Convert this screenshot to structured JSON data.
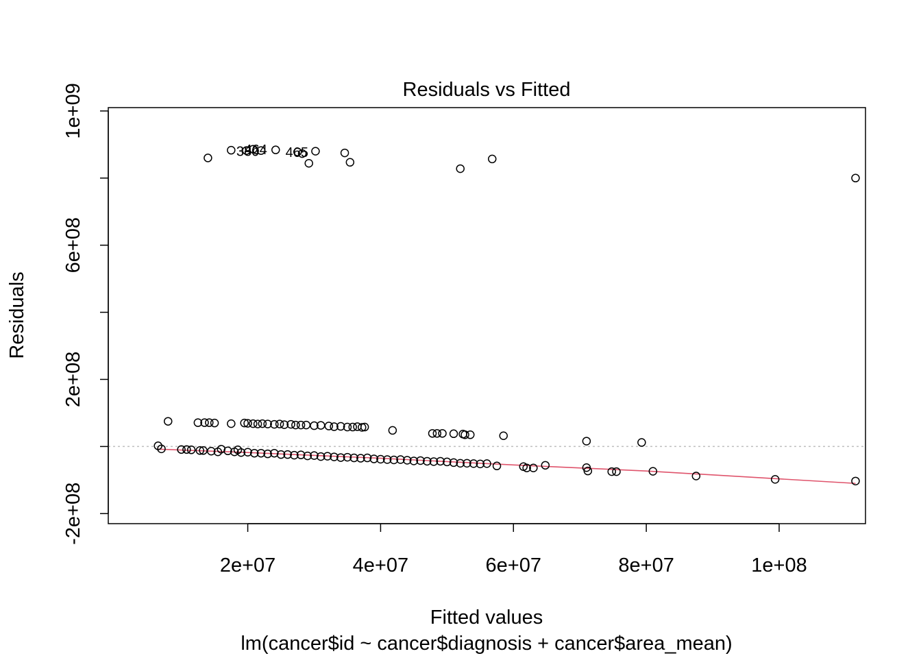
{
  "chart_data": {
    "type": "scatter",
    "title": "Residuals vs Fitted",
    "xlabel": "Fitted values",
    "ylabel": "Residuals",
    "subtitle": "lm(cancer$id ~ cancer$diagnosis + cancer$area_mean)",
    "xlim": [
      -1000000,
      113000000
    ],
    "ylim": [
      -230000000,
      1010000000
    ],
    "x_ticks": [
      {
        "value": 20000000,
        "label": "2e+07"
      },
      {
        "value": 40000000,
        "label": "4e+07"
      },
      {
        "value": 60000000,
        "label": "6e+07"
      },
      {
        "value": 80000000,
        "label": "8e+07"
      },
      {
        "value": 100000000,
        "label": "1e+08"
      }
    ],
    "y_ticks": [
      {
        "value": -200000000,
        "label": "-2e+08",
        "labeled": true
      },
      {
        "value": 0,
        "label": "",
        "labeled": false
      },
      {
        "value": 200000000,
        "label": "2e+08",
        "labeled": true
      },
      {
        "value": 400000000,
        "label": "",
        "labeled": false
      },
      {
        "value": 600000000,
        "label": "6e+08",
        "labeled": true
      },
      {
        "value": 800000000,
        "label": "",
        "labeled": false
      },
      {
        "value": 1000000000,
        "label": "1e+09",
        "labeled": true
      }
    ],
    "zero_line": 0,
    "grid": false,
    "point_labels": [
      {
        "text": "380",
        "x": 20000000,
        "y": 880000000
      },
      {
        "text": "464",
        "x": 21200000,
        "y": 885000000
      },
      {
        "text": "465",
        "x": 27400000,
        "y": 877000000
      }
    ],
    "series": [
      {
        "type": "points",
        "points": [
          [
            14000000,
            860000000
          ],
          [
            17500000,
            883000000
          ],
          [
            19800000,
            882000000
          ],
          [
            20800000,
            886000000
          ],
          [
            22000000,
            882000000
          ],
          [
            24200000,
            884000000
          ],
          [
            27500000,
            878000000
          ],
          [
            28200000,
            873000000
          ],
          [
            29200000,
            844000000
          ],
          [
            30200000,
            880000000
          ],
          [
            34600000,
            875000000
          ],
          [
            35400000,
            847000000
          ],
          [
            52000000,
            828000000
          ],
          [
            56800000,
            857000000
          ],
          [
            111500000,
            800000000
          ],
          [
            8000000,
            75000000
          ],
          [
            12500000,
            71000000
          ],
          [
            13500000,
            71000000
          ],
          [
            14200000,
            71000000
          ],
          [
            15000000,
            70000000
          ],
          [
            17500000,
            68000000
          ],
          [
            19500000,
            70000000
          ],
          [
            20000000,
            69000000
          ],
          [
            20800000,
            68000000
          ],
          [
            21500000,
            67000000
          ],
          [
            22200000,
            68000000
          ],
          [
            23000000,
            67000000
          ],
          [
            24000000,
            66000000
          ],
          [
            24800000,
            67000000
          ],
          [
            25500000,
            65000000
          ],
          [
            26500000,
            66000000
          ],
          [
            27200000,
            64000000
          ],
          [
            28000000,
            64000000
          ],
          [
            28800000,
            64000000
          ],
          [
            30000000,
            62000000
          ],
          [
            31000000,
            63000000
          ],
          [
            32200000,
            61000000
          ],
          [
            33000000,
            59000000
          ],
          [
            34000000,
            60000000
          ],
          [
            35000000,
            58000000
          ],
          [
            35800000,
            58000000
          ],
          [
            36500000,
            59000000
          ],
          [
            37200000,
            57000000
          ],
          [
            37600000,
            58000000
          ],
          [
            41800000,
            48000000
          ],
          [
            47800000,
            39000000
          ],
          [
            48500000,
            39000000
          ],
          [
            49300000,
            39000000
          ],
          [
            51000000,
            38000000
          ],
          [
            52400000,
            37000000
          ],
          [
            52700000,
            35000000
          ],
          [
            53500000,
            35000000
          ],
          [
            58500000,
            32000000
          ],
          [
            71000000,
            16000000
          ],
          [
            79300000,
            12000000
          ],
          [
            6500000,
            2000000
          ],
          [
            7000000,
            -7000000
          ],
          [
            10000000,
            -9000000
          ],
          [
            10800000,
            -9000000
          ],
          [
            11500000,
            -10000000
          ],
          [
            12800000,
            -12000000
          ],
          [
            13300000,
            -12000000
          ],
          [
            14500000,
            -14000000
          ],
          [
            15500000,
            -16000000
          ],
          [
            16000000,
            -8000000
          ],
          [
            17000000,
            -13000000
          ],
          [
            18000000,
            -16000000
          ],
          [
            18500000,
            -10000000
          ],
          [
            19000000,
            -18000000
          ],
          [
            20000000,
            -17000000
          ],
          [
            21000000,
            -20000000
          ],
          [
            22000000,
            -20000000
          ],
          [
            23000000,
            -22000000
          ],
          [
            24000000,
            -20000000
          ],
          [
            25000000,
            -24000000
          ],
          [
            26000000,
            -24000000
          ],
          [
            27000000,
            -26000000
          ],
          [
            28000000,
            -25000000
          ],
          [
            29000000,
            -28000000
          ],
          [
            30000000,
            -27000000
          ],
          [
            31000000,
            -30000000
          ],
          [
            32000000,
            -29000000
          ],
          [
            33000000,
            -31000000
          ],
          [
            34000000,
            -33000000
          ],
          [
            35000000,
            -32000000
          ],
          [
            36000000,
            -34000000
          ],
          [
            37000000,
            -35000000
          ],
          [
            38000000,
            -34000000
          ],
          [
            39000000,
            -37000000
          ],
          [
            40000000,
            -38000000
          ],
          [
            41000000,
            -39000000
          ],
          [
            42000000,
            -40000000
          ],
          [
            43000000,
            -39000000
          ],
          [
            44000000,
            -41000000
          ],
          [
            45000000,
            -43000000
          ],
          [
            46000000,
            -42000000
          ],
          [
            47000000,
            -44000000
          ],
          [
            48000000,
            -45000000
          ],
          [
            49000000,
            -44000000
          ],
          [
            50000000,
            -46000000
          ],
          [
            51000000,
            -48000000
          ],
          [
            52000000,
            -50000000
          ],
          [
            53000000,
            -50000000
          ],
          [
            54000000,
            -51000000
          ],
          [
            55000000,
            -52000000
          ],
          [
            56000000,
            -51000000
          ],
          [
            57500000,
            -58000000
          ],
          [
            61500000,
            -60000000
          ],
          [
            62000000,
            -64000000
          ],
          [
            63000000,
            -64000000
          ],
          [
            64800000,
            -56000000
          ],
          [
            71000000,
            -63000000
          ],
          [
            71200000,
            -73000000
          ],
          [
            74800000,
            -75000000
          ],
          [
            75500000,
            -75000000
          ],
          [
            81000000,
            -74000000
          ],
          [
            87500000,
            -88000000
          ],
          [
            99400000,
            -98000000
          ],
          [
            111500000,
            -103000000
          ]
        ]
      },
      {
        "type": "smooth",
        "name": "",
        "points": [
          [
            6500000,
            -8000000
          ],
          [
            20000000,
            -18000000
          ],
          [
            40000000,
            -35000000
          ],
          [
            60000000,
            -55000000
          ],
          [
            80000000,
            -73000000
          ],
          [
            111500000,
            -110000000
          ]
        ]
      }
    ]
  },
  "colors": {
    "points": "#000000",
    "smooth_line": "#DF536B",
    "zero_line": "#BEBEBE",
    "axis": "#000000"
  }
}
